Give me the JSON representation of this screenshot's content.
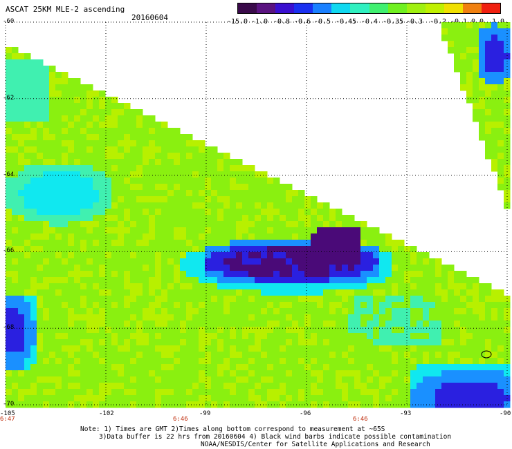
{
  "header": {
    "title": "ASCAT 25KM MLE-2 ascending",
    "date": "20160604"
  },
  "colorbar": {
    "colors": [
      "#3a0a4a",
      "#5a1380",
      "#3a10d0",
      "#1a30f0",
      "#1a80ff",
      "#10d8f0",
      "#30f0c0",
      "#40f070",
      "#70f020",
      "#a0f010",
      "#c0f000",
      "#f0e000",
      "#f08010",
      "#f02010"
    ],
    "labels": [
      "-15.0",
      "-1.0",
      "-0.8",
      "-0.6",
      "-0.5",
      "-0.45",
      "-0.4",
      "-0.35",
      "-0.3",
      "-0.2",
      "-0.1",
      "0.0",
      "1.0"
    ]
  },
  "map": {
    "lat_labels": [
      "-60",
      "-62",
      "-64",
      "-66",
      "-68",
      "-70"
    ],
    "lon_labels": [
      "-105",
      "-102",
      "-99",
      "-96",
      "-93",
      "-90"
    ],
    "time_labels": [
      "6:47",
      "6:46",
      "6:46"
    ],
    "field_colors": {
      "purple": "#4a0a78",
      "blue": "#2a20e0",
      "lightblue": "#1a90ff",
      "cyan": "#10e8f0",
      "aqua": "#40f0b0",
      "green": "#4ef040",
      "lime": "#8af010",
      "yellow": "#b8f000"
    }
  },
  "notes": {
    "line1": "Note: 1) Times are GMT 2)Times along bottom correspond to measurement at ~65S",
    "line2": "3)Data buffer is 22 hrs from 20160604 4) Black wind barbs indicate possible contamination",
    "line3": "NOAA/NESDIS/Center for Satellite Applications and Research"
  }
}
